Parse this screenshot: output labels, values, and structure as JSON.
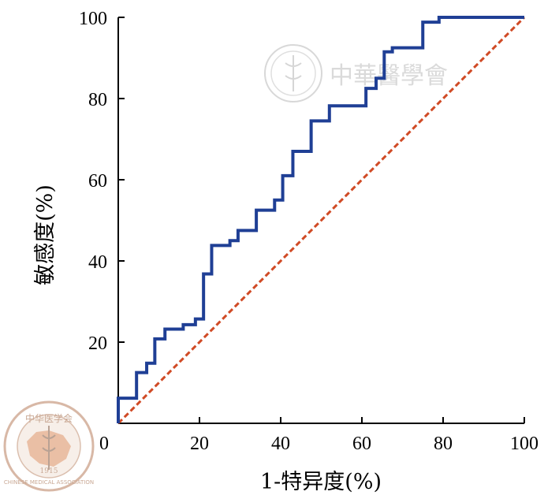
{
  "chart_data": {
    "type": "line",
    "xlabel": "1-特异度(%)",
    "ylabel": "敏感度(%)",
    "xlim": [
      0,
      100
    ],
    "ylim": [
      0,
      100
    ],
    "xticks": [
      "0",
      "20",
      "40",
      "60",
      "80",
      "100"
    ],
    "yticks": [
      "20",
      "40",
      "60",
      "80",
      "100"
    ],
    "grid": false,
    "series": [
      {
        "style": "step",
        "color": "#1f3f95",
        "points": [
          [
            0,
            0
          ],
          [
            0,
            6.2
          ],
          [
            4.5,
            6.2
          ],
          [
            4.5,
            12.5
          ],
          [
            7,
            12.5
          ],
          [
            7,
            14.8
          ],
          [
            9,
            14.8
          ],
          [
            9,
            20.8
          ],
          [
            11.5,
            20.8
          ],
          [
            11.5,
            23.2
          ],
          [
            16,
            23.2
          ],
          [
            16,
            24.3
          ],
          [
            19,
            24.3
          ],
          [
            19,
            25.7
          ],
          [
            21,
            25.7
          ],
          [
            21,
            36.8
          ],
          [
            23,
            36.8
          ],
          [
            23,
            43.8
          ],
          [
            27.5,
            43.8
          ],
          [
            27.5,
            45
          ],
          [
            29.5,
            45
          ],
          [
            29.5,
            47.5
          ],
          [
            34,
            47.5
          ],
          [
            34,
            52.5
          ],
          [
            38.5,
            52.5
          ],
          [
            38.5,
            55
          ],
          [
            40.5,
            55
          ],
          [
            40.5,
            61
          ],
          [
            43,
            61
          ],
          [
            43,
            67
          ],
          [
            47.5,
            67
          ],
          [
            47.5,
            74.5
          ],
          [
            52,
            74.5
          ],
          [
            52,
            78.2
          ],
          [
            61,
            78.2
          ],
          [
            61,
            82.5
          ],
          [
            63.5,
            82.5
          ],
          [
            63.5,
            85
          ],
          [
            65.5,
            85
          ],
          [
            65.5,
            91.5
          ],
          [
            67.5,
            91.5
          ],
          [
            67.5,
            92.5
          ],
          [
            75,
            92.5
          ],
          [
            75,
            98.8
          ],
          [
            79,
            98.8
          ],
          [
            79,
            100
          ],
          [
            100,
            100
          ]
        ]
      },
      {
        "style": "dashed",
        "color": "#d04a25",
        "points": [
          [
            0,
            0
          ],
          [
            100,
            100
          ]
        ]
      }
    ]
  },
  "watermark": {
    "text": "中華醫學會"
  },
  "logo": {
    "text_top": "中华医学会",
    "text_bottom": "CHINESE MEDICAL ASSOCIATION",
    "year": "1915"
  }
}
